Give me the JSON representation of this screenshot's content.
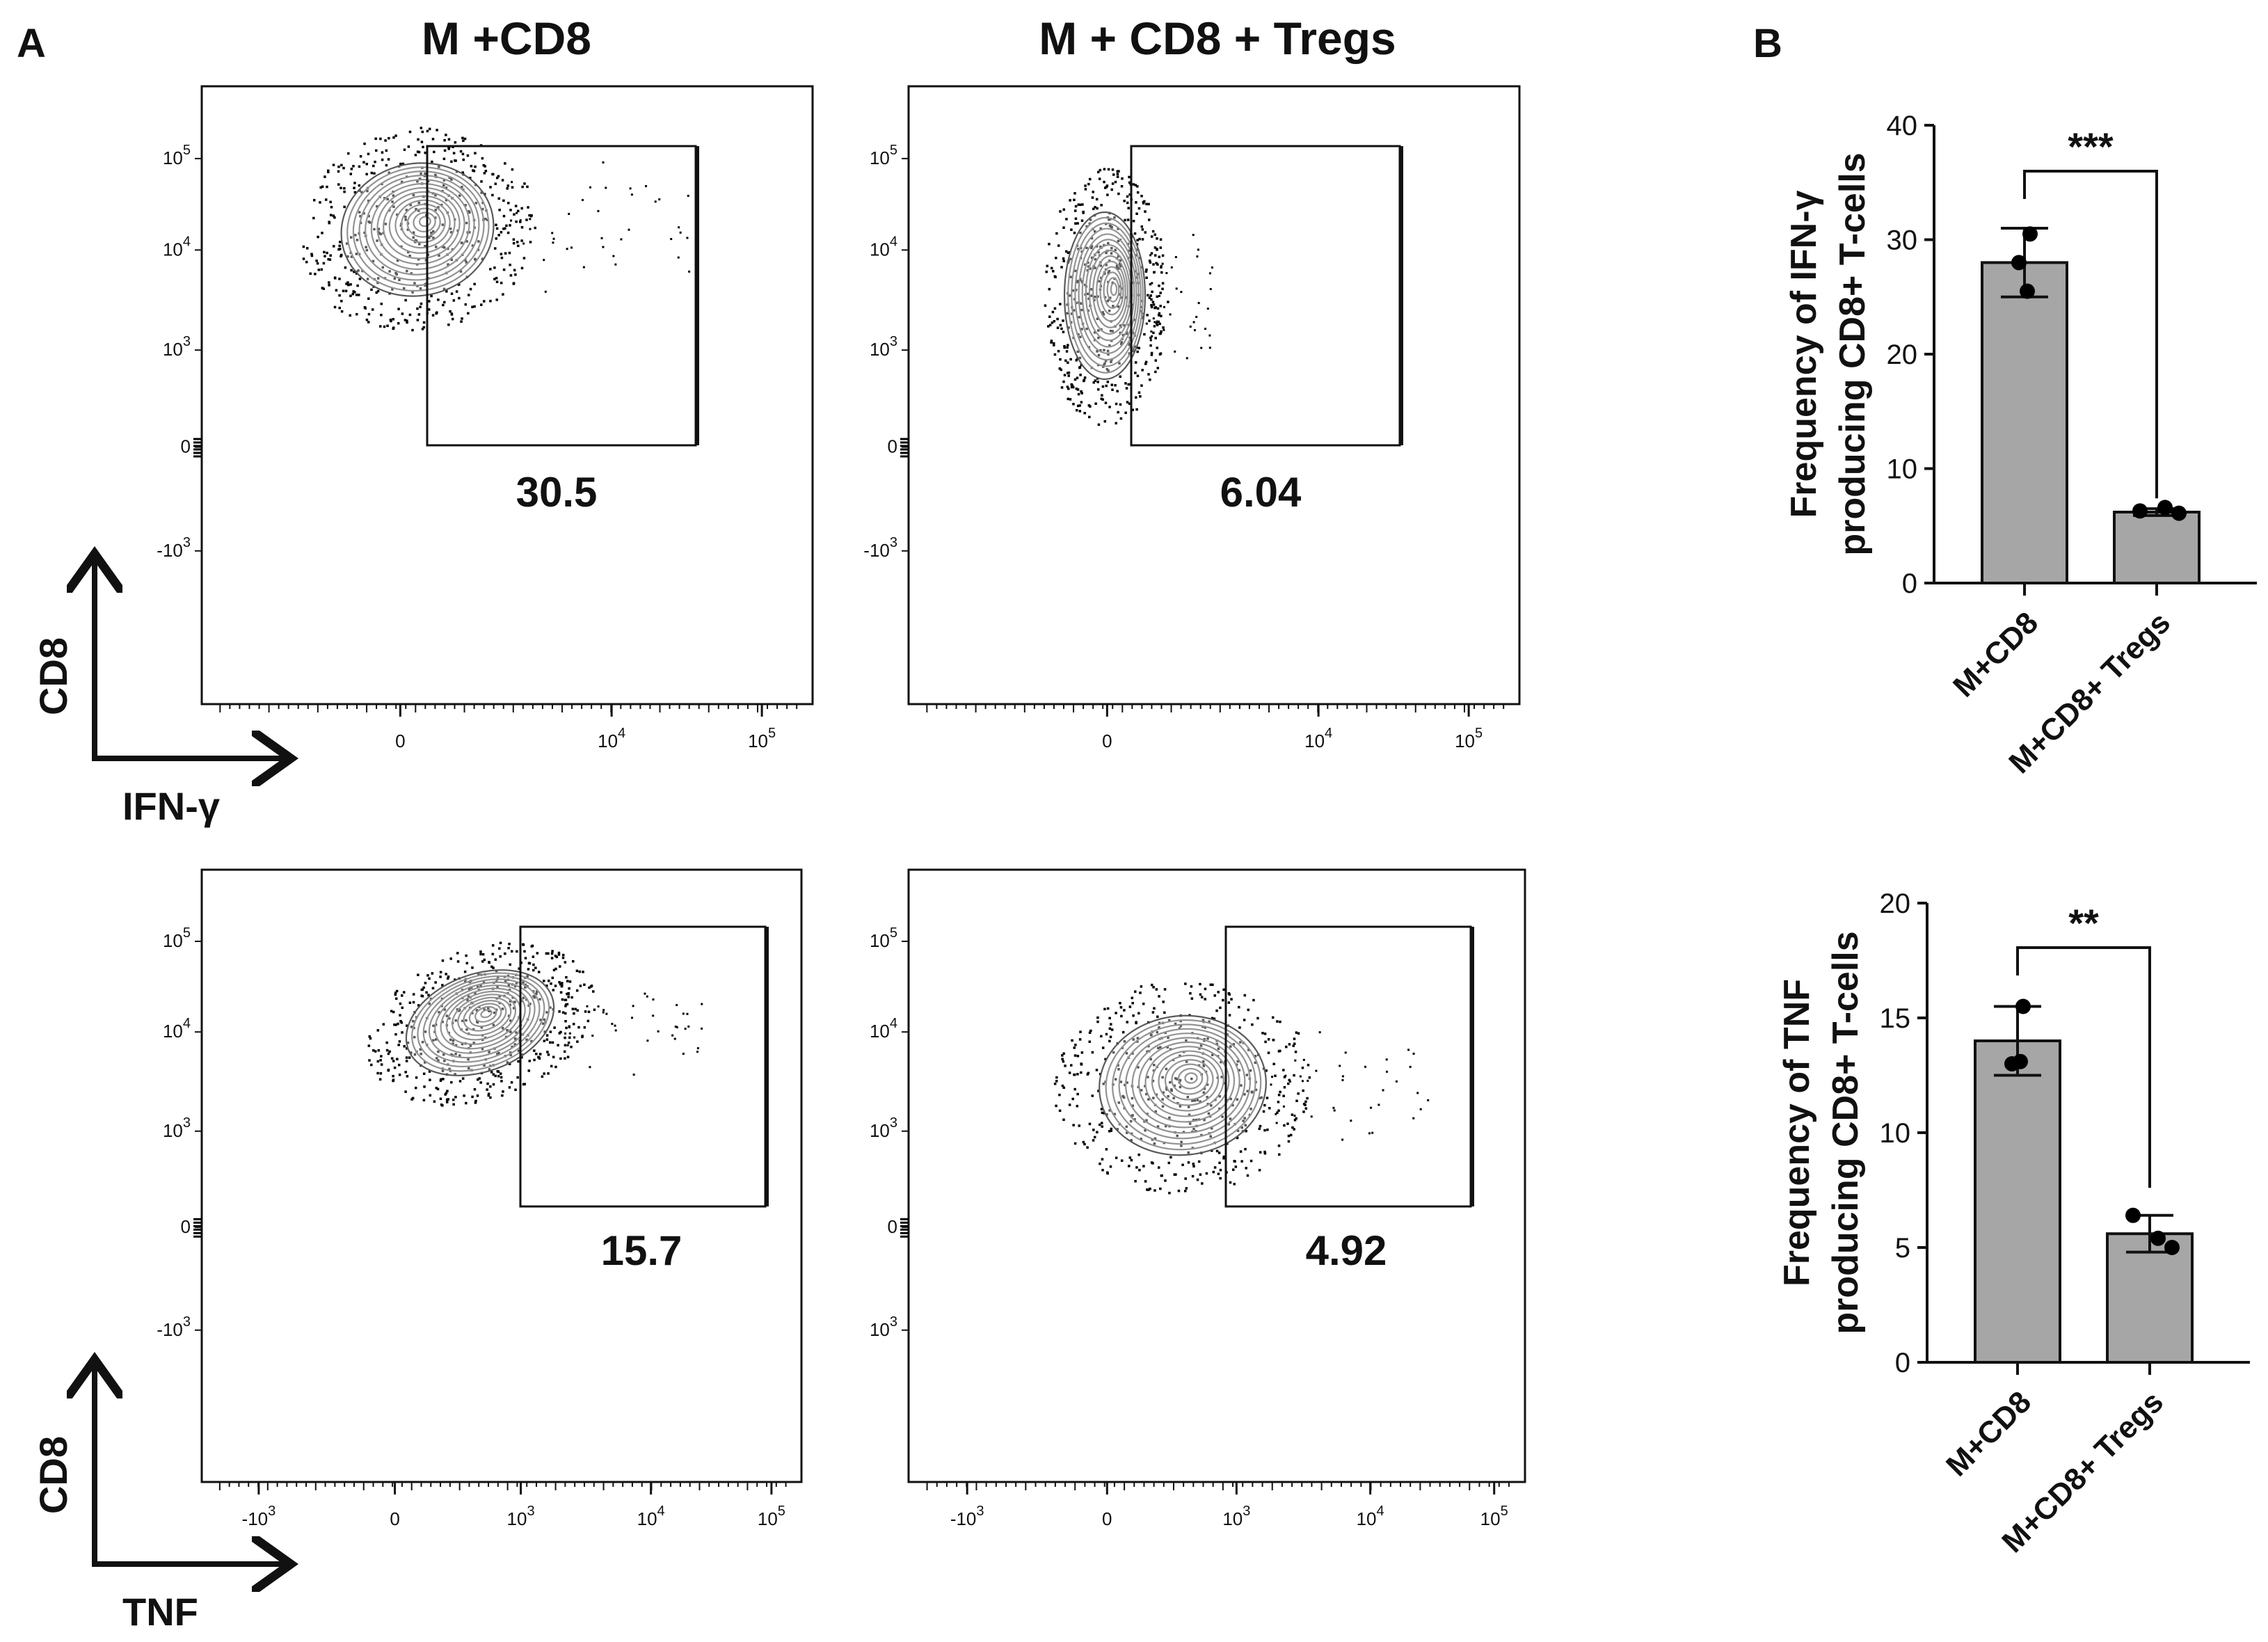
{
  "panel_labels": {
    "a": "A",
    "b": "B"
  },
  "column_titles": [
    "M +CD8",
    "M + CD8 + Tregs"
  ],
  "colors": {
    "bar_fill": "#a6a6a6",
    "stroke": "#111111",
    "contour": "#5a5a5a",
    "dots": "#000000"
  },
  "flow_axes": {
    "row1": {
      "y_label": "CD8",
      "x_label": "IFN-γ"
    },
    "row2": {
      "y_label": "CD8",
      "x_label": "TNF"
    }
  },
  "flow_y_ticks": [
    {
      "base": "10",
      "exp": "5"
    },
    {
      "base": "10",
      "exp": "4"
    },
    {
      "base": "10",
      "exp": "3"
    },
    {
      "base": "0",
      "exp": ""
    },
    {
      "base": "-10",
      "exp": "3"
    }
  ],
  "flow_x_ticks_row1": [
    {
      "base": "0",
      "exp": ""
    },
    {
      "base": "10",
      "exp": "4"
    },
    {
      "base": "10",
      "exp": "5"
    }
  ],
  "flow_x_ticks_row2": [
    {
      "base": "-10",
      "exp": "3"
    },
    {
      "base": "0",
      "exp": ""
    },
    {
      "base": "10",
      "exp": "3"
    },
    {
      "base": "10",
      "exp": "4"
    },
    {
      "base": "10",
      "exp": "5"
    }
  ],
  "panel4_y_ticks": [
    {
      "base": "10",
      "exp": "5"
    },
    {
      "base": "10",
      "exp": "4"
    },
    {
      "base": "10",
      "exp": "3"
    },
    {
      "base": "0",
      "exp": ""
    },
    {
      "base": "10",
      "exp": "3"
    }
  ],
  "gate_values": [
    "30.5",
    "6.04",
    "15.7",
    "4.92"
  ],
  "chart_data": [
    {
      "type": "bar",
      "title": "",
      "categories": [
        "M+CD8",
        "M+CD8+ Tregs"
      ],
      "values": [
        28.0,
        6.2
      ],
      "error": [
        3.0,
        0.3
      ],
      "points": [
        [
          30.5,
          28.0,
          25.5
        ],
        [
          6.3,
          6.6,
          6.1
        ]
      ],
      "ylim": [
        0,
        40
      ],
      "yticks": [
        "0",
        "10",
        "20",
        "30",
        "40"
      ],
      "ylabel_line1": "Frequency of IFN-γ",
      "ylabel_line2": "producing CD8+ T-cells",
      "xlabel": "",
      "significance": "***"
    },
    {
      "type": "bar",
      "title": "",
      "categories": [
        "M+CD8",
        "M+CD8+ Tregs"
      ],
      "values": [
        14.0,
        5.6
      ],
      "error": [
        1.5,
        0.8
      ],
      "points": [
        [
          15.5,
          13.0,
          13.1
        ],
        [
          6.4,
          5.4,
          5.0
        ]
      ],
      "ylim": [
        0,
        20
      ],
      "yticks": [
        "0",
        "5",
        "10",
        "15",
        "20"
      ],
      "ylabel_line1": "Frequency of TNF",
      "ylabel_line2": "producing CD8+ T-cells",
      "xlabel": "",
      "significance": "**"
    }
  ]
}
